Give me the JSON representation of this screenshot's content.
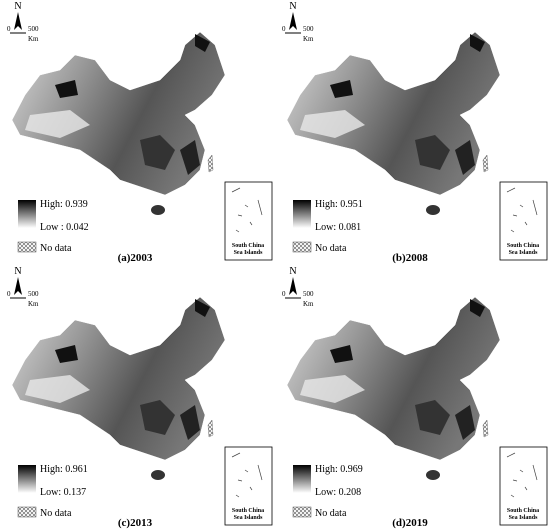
{
  "north_arrow": {
    "letter": "N",
    "scale_start": "0",
    "scale_end": "500",
    "unit": "Km"
  },
  "no_data": "No data",
  "inset_label": [
    "South China",
    "Sea Islands"
  ],
  "panels": [
    {
      "label": "(a)2003",
      "high": "High: 0.939",
      "low": "Low : 0.042"
    },
    {
      "label": "(b)2008",
      "high": "High: 0.951",
      "low": "Low: 0.081"
    },
    {
      "label": "(c)2013",
      "high": "High: 0.961",
      "low": "Low: 0.137"
    },
    {
      "label": "(d)2019",
      "high": "High: 0.969",
      "low": "Low: 0.208"
    }
  ]
}
